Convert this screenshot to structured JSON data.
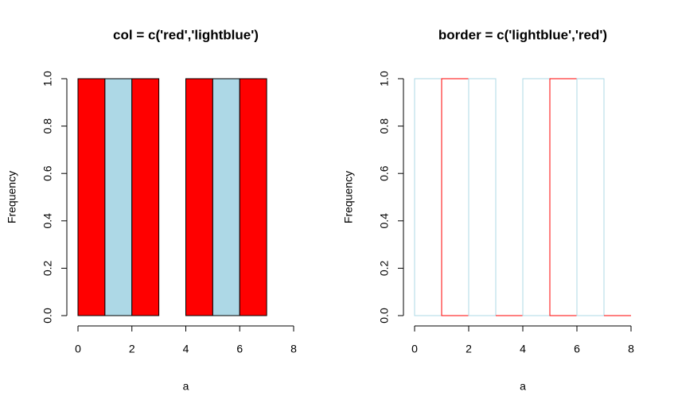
{
  "chart_data": [
    {
      "type": "histogram",
      "title": "col = c('red','lightblue')",
      "xlabel": "a",
      "ylabel": "Frequency",
      "bins": [
        0,
        1,
        2,
        3,
        4,
        5,
        6,
        7,
        8
      ],
      "values": [
        1,
        1,
        1,
        0,
        1,
        1,
        1,
        0
      ],
      "color_mode": "fill",
      "colors": [
        "#ff0000",
        "#add8e6"
      ],
      "xlim": [
        0,
        8
      ],
      "xticks": [
        0,
        2,
        4,
        6,
        8
      ],
      "ylim": [
        0,
        1
      ],
      "yticks": [
        {
          "value": 0,
          "label": "0.0"
        },
        {
          "value": 0.2,
          "label": "0.2"
        },
        {
          "value": 0.4,
          "label": "0.4"
        },
        {
          "value": 0.6,
          "label": "0.6"
        },
        {
          "value": 0.8,
          "label": "0.8"
        },
        {
          "value": 1,
          "label": "1.0"
        }
      ]
    },
    {
      "type": "histogram",
      "title": "border = c('lightblue','red')",
      "xlabel": "a",
      "ylabel": "Frequency",
      "bins": [
        0,
        1,
        2,
        3,
        4,
        5,
        6,
        7,
        8
      ],
      "values": [
        1,
        1,
        1,
        0,
        1,
        1,
        1,
        0
      ],
      "color_mode": "border",
      "colors": [
        "#add8e6",
        "#ff0000"
      ],
      "xlim": [
        0,
        8
      ],
      "xticks": [
        0,
        2,
        4,
        6,
        8
      ],
      "ylim": [
        0,
        1
      ],
      "yticks": [
        {
          "value": 0,
          "label": "0.0"
        },
        {
          "value": 0.2,
          "label": "0.2"
        },
        {
          "value": 0.4,
          "label": "0.4"
        },
        {
          "value": 0.6,
          "label": "0.6"
        },
        {
          "value": 0.8,
          "label": "0.8"
        },
        {
          "value": 1,
          "label": "1.0"
        }
      ]
    }
  ]
}
